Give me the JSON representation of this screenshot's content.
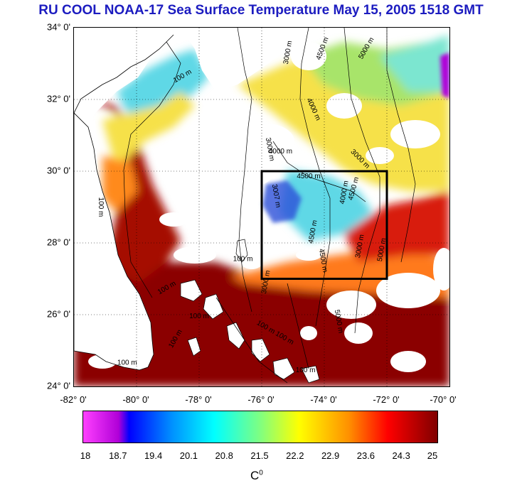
{
  "title": "RU COOL  NOAA-17 Sea Surface Temperature May 15, 2005 1518 GMT",
  "map": {
    "lat_labels": [
      "34° 0'",
      "32° 0'",
      "30° 0'",
      "28° 0'",
      "26° 0'",
      "24° 0'"
    ],
    "lon_labels": [
      "-82° 0'",
      "-80° 0'",
      "-78° 0'",
      "-76° 0'",
      "-74° 0'",
      "-72° 0'",
      "-70° 0'"
    ],
    "lat_range": [
      24,
      34
    ],
    "lon_range": [
      -82,
      -70
    ],
    "study_box": {
      "lon": [
        -76,
        -72
      ],
      "lat": [
        27,
        30
      ]
    },
    "contour_labels": [
      {
        "text": "100 m",
        "lon": -78.5,
        "lat": 32.6,
        "angle": -30
      },
      {
        "text": "3000 m",
        "lon": -75.1,
        "lat": 33.3,
        "angle": -80
      },
      {
        "text": "4500 m",
        "lon": -74.0,
        "lat": 33.4,
        "angle": -70
      },
      {
        "text": "5000 m",
        "lon": -72.6,
        "lat": 33.4,
        "angle": -60
      },
      {
        "text": "4000 m",
        "lon": -74.4,
        "lat": 31.7,
        "angle": 65
      },
      {
        "text": "3000 m",
        "lon": -75.8,
        "lat": 30.6,
        "angle": 80
      },
      {
        "text": "4000 m",
        "lon": -75.4,
        "lat": 30.5,
        "angle": 0
      },
      {
        "text": "3000 m",
        "lon": -72.9,
        "lat": 30.3,
        "angle": 45
      },
      {
        "text": "4500 m",
        "lon": -74.5,
        "lat": 29.8,
        "angle": 0
      },
      {
        "text": "4000 m",
        "lon": -73.3,
        "lat": 29.4,
        "angle": -80
      },
      {
        "text": "4500 m",
        "lon": -73.0,
        "lat": 29.5,
        "angle": -75
      },
      {
        "text": "3007 m",
        "lon": -75.6,
        "lat": 29.3,
        "angle": 80
      },
      {
        "text": "100 m",
        "lon": -81.2,
        "lat": 29.0,
        "angle": 90
      },
      {
        "text": "4500 m",
        "lon": -74.3,
        "lat": 28.3,
        "angle": -80
      },
      {
        "text": "3000 m",
        "lon": -72.8,
        "lat": 27.9,
        "angle": -80
      },
      {
        "text": "5000 m",
        "lon": -72.1,
        "lat": 27.8,
        "angle": -80
      },
      {
        "text": "4500 m",
        "lon": -74.1,
        "lat": 27.5,
        "angle": 80
      },
      {
        "text": "100 m",
        "lon": -76.6,
        "lat": 27.5,
        "angle": 0
      },
      {
        "text": "3000 m",
        "lon": -75.8,
        "lat": 26.9,
        "angle": -80
      },
      {
        "text": "100 m",
        "lon": -79.0,
        "lat": 26.7,
        "angle": -30
      },
      {
        "text": "100 m",
        "lon": -78.0,
        "lat": 25.9,
        "angle": 0
      },
      {
        "text": "100 m",
        "lon": -78.7,
        "lat": 25.3,
        "angle": -60
      },
      {
        "text": "5000 m",
        "lon": -73.6,
        "lat": 25.8,
        "angle": 80
      },
      {
        "text": "100 m",
        "lon": -75.9,
        "lat": 25.6,
        "angle": 30
      },
      {
        "text": "100 m",
        "lon": -75.3,
        "lat": 25.3,
        "angle": 30
      },
      {
        "text": "100 m",
        "lon": -74.6,
        "lat": 24.4,
        "angle": 0
      },
      {
        "text": "100 m",
        "lon": -80.3,
        "lat": 24.6,
        "angle": 0
      }
    ]
  },
  "colorbar": {
    "ticks": [
      "18",
      "18.7",
      "19.4",
      "20.1",
      "20.8",
      "21.5",
      "22.2",
      "22.9",
      "23.6",
      "24.3",
      "25"
    ],
    "unit": "C",
    "unit_sup": "0"
  },
  "colors": {
    "title": "#1c1cc0",
    "warm_dark": "#8b0000",
    "warm": "#d81e10",
    "orange": "#ff8a1e",
    "yellow": "#f6e14a",
    "cyan": "#5fd8e6",
    "blue": "#2a50d8",
    "cloud": "#ffffff"
  }
}
